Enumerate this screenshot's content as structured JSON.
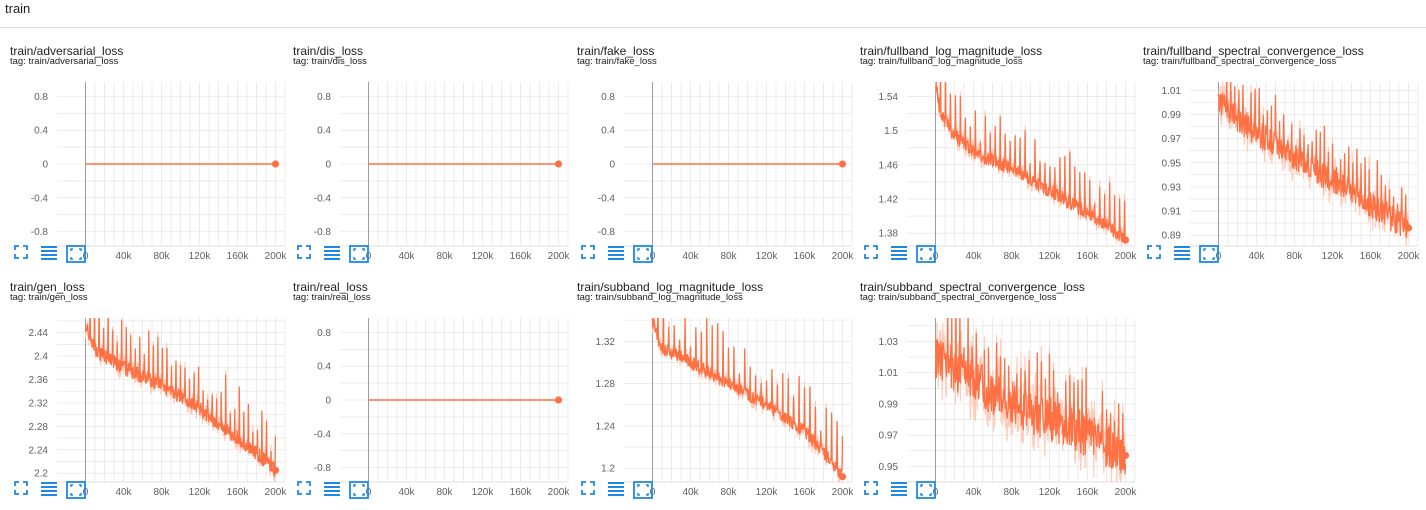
{
  "group": {
    "title": "train"
  },
  "colors": {
    "line": "#ff7043",
    "line_faint": "#ffccbc",
    "grid": "#e0e0e0",
    "axis": "#9e9e9e",
    "icon": "#1e88e5"
  },
  "icons": [
    "fullscreen-icon",
    "toggle-log-scale-icon",
    "fit-domain-icon"
  ],
  "chart_data": [
    {
      "type": "line",
      "title": "train/adversarial_loss",
      "tag": "tag: train/adversarial_loss",
      "xlim": [
        -30000,
        210000
      ],
      "ylim": [
        -0.97,
        0.97
      ],
      "xticks": [
        0,
        40000,
        80000,
        120000,
        160000,
        200000
      ],
      "xtick_labels": [
        "0",
        "40k",
        "80k",
        "120k",
        "160k",
        "200k"
      ],
      "yticks": [
        0.8,
        0.4,
        0,
        -0.4,
        -0.8
      ],
      "ytick_labels": [
        "0.8",
        "0.4",
        "0",
        "-0.4",
        "-0.8"
      ],
      "series": [
        {
          "kind": "flat",
          "x_start": 0,
          "x_end": 200000,
          "value": 0
        }
      ]
    },
    {
      "type": "line",
      "title": "train/dis_loss",
      "tag": "tag: train/dis_loss",
      "xlim": [
        -30000,
        210000
      ],
      "ylim": [
        -0.97,
        0.97
      ],
      "xticks": [
        0,
        40000,
        80000,
        120000,
        160000,
        200000
      ],
      "xtick_labels": [
        "0",
        "40k",
        "80k",
        "120k",
        "160k",
        "200k"
      ],
      "yticks": [
        0.8,
        0.4,
        0,
        -0.4,
        -0.8
      ],
      "ytick_labels": [
        "0.8",
        "0.4",
        "0",
        "-0.4",
        "-0.8"
      ],
      "series": [
        {
          "kind": "flat",
          "x_start": 0,
          "x_end": 200000,
          "value": 0
        }
      ]
    },
    {
      "type": "line",
      "title": "train/fake_loss",
      "tag": "tag: train/fake_loss",
      "xlim": [
        -30000,
        210000
      ],
      "ylim": [
        -0.97,
        0.97
      ],
      "xticks": [
        0,
        40000,
        80000,
        120000,
        160000,
        200000
      ],
      "xtick_labels": [
        "0",
        "40k",
        "80k",
        "120k",
        "160k",
        "200k"
      ],
      "yticks": [
        0.8,
        0.4,
        0,
        -0.4,
        -0.8
      ],
      "ytick_labels": [
        "0.8",
        "0.4",
        "0",
        "-0.4",
        "-0.8"
      ],
      "series": [
        {
          "kind": "flat",
          "x_start": 0,
          "x_end": 200000,
          "value": 0
        }
      ]
    },
    {
      "type": "line",
      "title": "train/fullband_log_magnitude_loss",
      "tag": "tag: train/fullband_log_magnitude_loss",
      "xlim": [
        -30000,
        210000
      ],
      "ylim": [
        1.365,
        1.557
      ],
      "xticks": [
        0,
        40000,
        80000,
        120000,
        160000,
        200000
      ],
      "xtick_labels": [
        "0",
        "40k",
        "80k",
        "120k",
        "160k",
        "200k"
      ],
      "yticks": [
        1.54,
        1.5,
        1.46,
        1.42,
        1.38
      ],
      "ytick_labels": [
        "1.54",
        "1.5",
        "1.46",
        "1.42",
        "1.38"
      ],
      "series": [
        {
          "kind": "noisy",
          "trend": [
            [
              0,
              1.56
            ],
            [
              5000,
              1.52
            ],
            [
              20000,
              1.495
            ],
            [
              40000,
              1.475
            ],
            [
              80000,
              1.455
            ],
            [
              120000,
              1.43
            ],
            [
              150000,
              1.41
            ],
            [
              180000,
              1.39
            ],
            [
              200000,
              1.372
            ]
          ],
          "noise": 0.008,
          "spike_every": 11,
          "spike_height": 0.05,
          "end_value": 1.372
        }
      ]
    },
    {
      "type": "line",
      "title": "train/fullband_spectral_convergence_loss",
      "tag": "tag: train/fullband_spectral_convergence_loss",
      "xlim": [
        -30000,
        210000
      ],
      "ylim": [
        0.881,
        1.017
      ],
      "xticks": [
        0,
        40000,
        80000,
        120000,
        160000,
        200000
      ],
      "xtick_labels": [
        "0",
        "40k",
        "80k",
        "120k",
        "160k",
        "200k"
      ],
      "yticks": [
        1.01,
        0.99,
        0.97,
        0.95,
        0.93,
        0.91,
        0.89
      ],
      "ytick_labels": [
        "1.01",
        "0.99",
        "0.97",
        "0.95",
        "0.93",
        "0.91",
        "0.89"
      ],
      "series": [
        {
          "kind": "noisy",
          "trend": [
            [
              0,
              1.0
            ],
            [
              20000,
              0.985
            ],
            [
              60000,
              0.965
            ],
            [
              100000,
              0.945
            ],
            [
              140000,
              0.925
            ],
            [
              180000,
              0.905
            ],
            [
              200000,
              0.895
            ]
          ],
          "noise": 0.011,
          "spike_every": 9,
          "spike_height": 0.03,
          "end_value": 0.896
        }
      ]
    },
    {
      "type": "line",
      "title": "train/gen_loss",
      "tag": "tag: train/gen_loss",
      "xlim": [
        -30000,
        210000
      ],
      "ylim": [
        2.185,
        2.465
      ],
      "xticks": [
        0,
        40000,
        80000,
        120000,
        160000,
        200000
      ],
      "xtick_labels": [
        "0",
        "40k",
        "80k",
        "120k",
        "160k",
        "200k"
      ],
      "yticks": [
        2.44,
        2.4,
        2.36,
        2.32,
        2.28,
        2.24,
        2.2
      ],
      "ytick_labels": [
        "2.44",
        "2.4",
        "2.36",
        "2.32",
        "2.28",
        "2.24",
        "2.2"
      ],
      "series": [
        {
          "kind": "noisy",
          "trend": [
            [
              0,
              2.45
            ],
            [
              10000,
              2.41
            ],
            [
              40000,
              2.38
            ],
            [
              80000,
              2.35
            ],
            [
              120000,
              2.31
            ],
            [
              160000,
              2.26
            ],
            [
              190000,
              2.22
            ],
            [
              200000,
              2.205
            ]
          ],
          "noise": 0.012,
          "spike_every": 10,
          "spike_height": 0.07,
          "end_value": 2.205
        }
      ]
    },
    {
      "type": "line",
      "title": "train/real_loss",
      "tag": "tag: train/real_loss",
      "xlim": [
        -30000,
        210000
      ],
      "ylim": [
        -0.97,
        0.97
      ],
      "xticks": [
        0,
        40000,
        80000,
        120000,
        160000,
        200000
      ],
      "xtick_labels": [
        "0",
        "40k",
        "80k",
        "120k",
        "160k",
        "200k"
      ],
      "yticks": [
        0.8,
        0.4,
        0,
        -0.4,
        -0.8
      ],
      "ytick_labels": [
        "0.8",
        "0.4",
        "0",
        "-0.4",
        "-0.8"
      ],
      "series": [
        {
          "kind": "flat",
          "x_start": 0,
          "x_end": 200000,
          "value": 0
        }
      ]
    },
    {
      "type": "line",
      "title": "train/subband_log_magnitude_loss",
      "tag": "tag: train/subband_log_magnitude_loss",
      "xlim": [
        -30000,
        210000
      ],
      "ylim": [
        1.187,
        1.342
      ],
      "xticks": [
        0,
        40000,
        80000,
        120000,
        160000,
        200000
      ],
      "xtick_labels": [
        "0",
        "40k",
        "80k",
        "120k",
        "160k",
        "200k"
      ],
      "yticks": [
        1.32,
        1.28,
        1.24,
        1.2
      ],
      "ytick_labels": [
        "1.32",
        "1.28",
        "1.24",
        "1.2"
      ],
      "series": [
        {
          "kind": "noisy",
          "trend": [
            [
              0,
              1.34
            ],
            [
              8000,
              1.315
            ],
            [
              40000,
              1.3
            ],
            [
              80000,
              1.28
            ],
            [
              120000,
              1.26
            ],
            [
              160000,
              1.235
            ],
            [
              190000,
              1.205
            ],
            [
              200000,
              1.192
            ]
          ],
          "noise": 0.006,
          "spike_every": 12,
          "spike_height": 0.04,
          "end_value": 1.192
        }
      ]
    },
    {
      "type": "line",
      "title": "train/subband_spectral_convergence_loss",
      "tag": "tag: train/subband_spectral_convergence_loss",
      "xlim": [
        -30000,
        210000
      ],
      "ylim": [
        0.94,
        1.045
      ],
      "xticks": [
        0,
        40000,
        80000,
        120000,
        160000,
        200000
      ],
      "xtick_labels": [
        "0",
        "40k",
        "80k",
        "120k",
        "160k",
        "200k"
      ],
      "yticks": [
        1.03,
        1.01,
        0.99,
        0.97,
        0.95
      ],
      "ytick_labels": [
        "1.03",
        "1.01",
        "0.99",
        "0.97",
        "0.95"
      ],
      "series": [
        {
          "kind": "noisy",
          "trend": [
            [
              0,
              1.02
            ],
            [
              40000,
              1.005
            ],
            [
              80000,
              0.99
            ],
            [
              120000,
              0.98
            ],
            [
              160000,
              0.97
            ],
            [
              200000,
              0.957
            ]
          ],
          "noise": 0.014,
          "spike_every": 9,
          "spike_height": 0.03,
          "end_value": 0.957
        }
      ]
    }
  ]
}
